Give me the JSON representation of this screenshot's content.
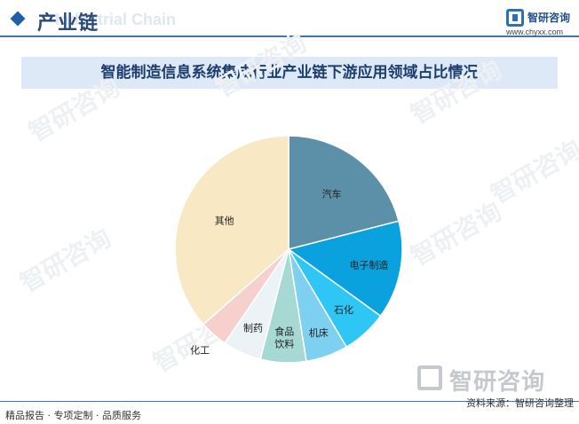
{
  "header": {
    "title": "产业链",
    "subtitle": "Industrial Chain"
  },
  "logo": {
    "name": "智研咨询",
    "url": "www.chyxx.com"
  },
  "watermark": {
    "text": "智研咨询"
  },
  "chart_data": {
    "type": "pie",
    "title": "智能制造信息系统集成行业产业链下游应用领域占比情况",
    "start_angle": 0,
    "direction": "clockwise",
    "slices": [
      {
        "label": "汽车",
        "lines": [
          "汽车"
        ],
        "value": 21,
        "color": "#5c8fa8"
      },
      {
        "label": "电子制造",
        "lines": [
          "电子制造"
        ],
        "value": 14,
        "color": "#0aa1df"
      },
      {
        "label": "石化",
        "lines": [
          "石化"
        ],
        "value": 6.5,
        "color": "#2ec6f4"
      },
      {
        "label": "机床",
        "lines": [
          "机床"
        ],
        "value": 6,
        "color": "#7dd0ef"
      },
      {
        "label": "食品饮料",
        "lines": [
          "食品",
          "饮料"
        ],
        "value": 6.5,
        "color": "#a6d8d4"
      },
      {
        "label": "制药",
        "lines": [
          "制药"
        ],
        "value": 5.5,
        "color": "#ebf3f6"
      },
      {
        "label": "化工",
        "lines": [
          "化工"
        ],
        "value": 4,
        "color": "#f6d0cc"
      },
      {
        "label": "其他",
        "lines": [
          "其他"
        ],
        "value": 36.5,
        "color": "#f8e9c4"
      }
    ]
  },
  "footer": {
    "left": "精品报告 · 专项定制 · 品质服务",
    "right": "资料来源：智研咨询整理"
  }
}
